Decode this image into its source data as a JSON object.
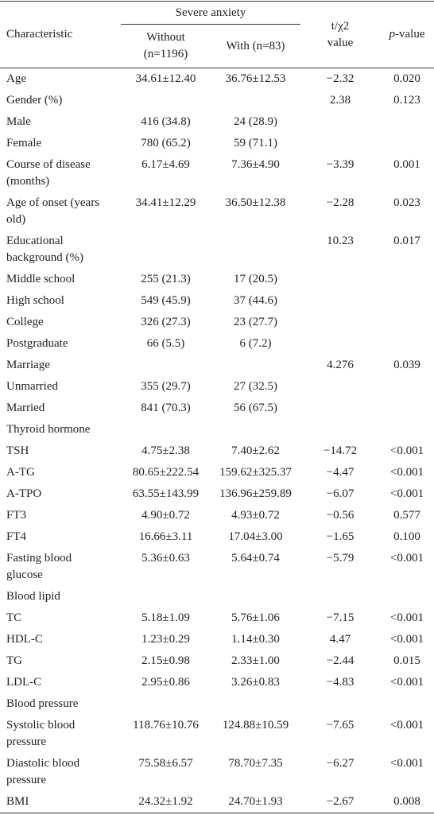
{
  "table": {
    "header": {
      "group": "Severe anxiety",
      "characteristic": "Characteristic",
      "without": "Without (n=1196)",
      "with": "With (n=83)",
      "stat": "t/χ2 value",
      "p_symbol": "p",
      "p_suffix": "-value"
    },
    "rows": [
      {
        "label": "Age",
        "without": "34.61±12.40",
        "with": "36.76±12.53",
        "stat": "−2.32",
        "p": "0.020"
      },
      {
        "label": "Gender (%)",
        "stat": "2.38",
        "p": "0.123"
      },
      {
        "label": "Male",
        "without": "416 (34.8)",
        "with": "24 (28.9)"
      },
      {
        "label": "Female",
        "without": "780 (65.2)",
        "with": "59 (71.1)"
      },
      {
        "label": "Course of disease (months)",
        "without": "6.17±4.69",
        "with": "7.36±4.90",
        "stat": "−3.39",
        "p": "0.001"
      },
      {
        "label": "Age of onset (years old)",
        "without": "34.41±12.29",
        "with": "36.50±12.38",
        "stat": "−2.28",
        "p": "0.023"
      },
      {
        "label": "Educational background (%)",
        "stat": "10.23",
        "p": "0.017"
      },
      {
        "label": "Middle school",
        "without": "255 (21.3)",
        "with": "17 (20.5)"
      },
      {
        "label": "High school",
        "without": "549 (45.9)",
        "with": "37 (44.6)"
      },
      {
        "label": "College",
        "without": "326 (27.3)",
        "with": "23 (27.7)"
      },
      {
        "label": "Postgraduate",
        "without": "66 (5.5)",
        "with": "6 (7.2)"
      },
      {
        "label": "Marriage",
        "stat": "4.276",
        "p": "0.039"
      },
      {
        "label": "Unmarried",
        "without": "355 (29.7)",
        "with": "27 (32.5)"
      },
      {
        "label": "Married",
        "without": "841 (70.3)",
        "with": "56 (67.5)"
      },
      {
        "label": "Thyroid hormone"
      },
      {
        "label": "TSH",
        "without": "4.75±2.38",
        "with": "7.40±2.62",
        "stat": "−14.72",
        "p": "<0.001"
      },
      {
        "label": "A-TG",
        "without": "80.65±222.54",
        "with": "159.62±325.37",
        "stat": "−4.47",
        "p": "<0.001"
      },
      {
        "label": "A-TPO",
        "without": "63.55±143.99",
        "with": "136.96±259.89",
        "stat": "−6.07",
        "p": "<0.001"
      },
      {
        "label": "FT3",
        "without": "4.90±0.72",
        "with": "4.93±0.72",
        "stat": "−0.56",
        "p": "0.577"
      },
      {
        "label": "FT4",
        "without": "16.66±3.11",
        "with": "17.04±3.00",
        "stat": "−1.65",
        "p": "0.100"
      },
      {
        "label": "Fasting blood glucose",
        "without": "5.36±0.63",
        "with": "5.64±0.74",
        "stat": "−5.79",
        "p": "<0.001"
      },
      {
        "label": "Blood lipid"
      },
      {
        "label": "TC",
        "without": "5.18±1.09",
        "with": "5.76±1.06",
        "stat": "−7.15",
        "p": "<0.001"
      },
      {
        "label": "HDL-C",
        "without": "1.23±0.29",
        "with": "1.14±0.30",
        "stat": "4.47",
        "p": "<0.001"
      },
      {
        "label": "TG",
        "without": "2.15±0.98",
        "with": "2.33±1.00",
        "stat": "−2.44",
        "p": "0.015"
      },
      {
        "label": "LDL-C",
        "without": "2.95±0.86",
        "with": "3.26±0.83",
        "stat": "−4.83",
        "p": "<0.001"
      },
      {
        "label": "Blood pressure"
      },
      {
        "label": "Systolic blood pressure",
        "without": "118.76±10.76",
        "with": "124.88±10.59",
        "stat": "−7.65",
        "p": "<0.001"
      },
      {
        "label": "Diastolic blood pressure",
        "without": "75.58±6.57",
        "with": "78.70±7.35",
        "stat": "−6.27",
        "p": "<0.001"
      },
      {
        "label": "BMI",
        "without": "24.32±1.92",
        "with": "24.70±1.93",
        "stat": "−2.67",
        "p": "0.008"
      }
    ]
  }
}
